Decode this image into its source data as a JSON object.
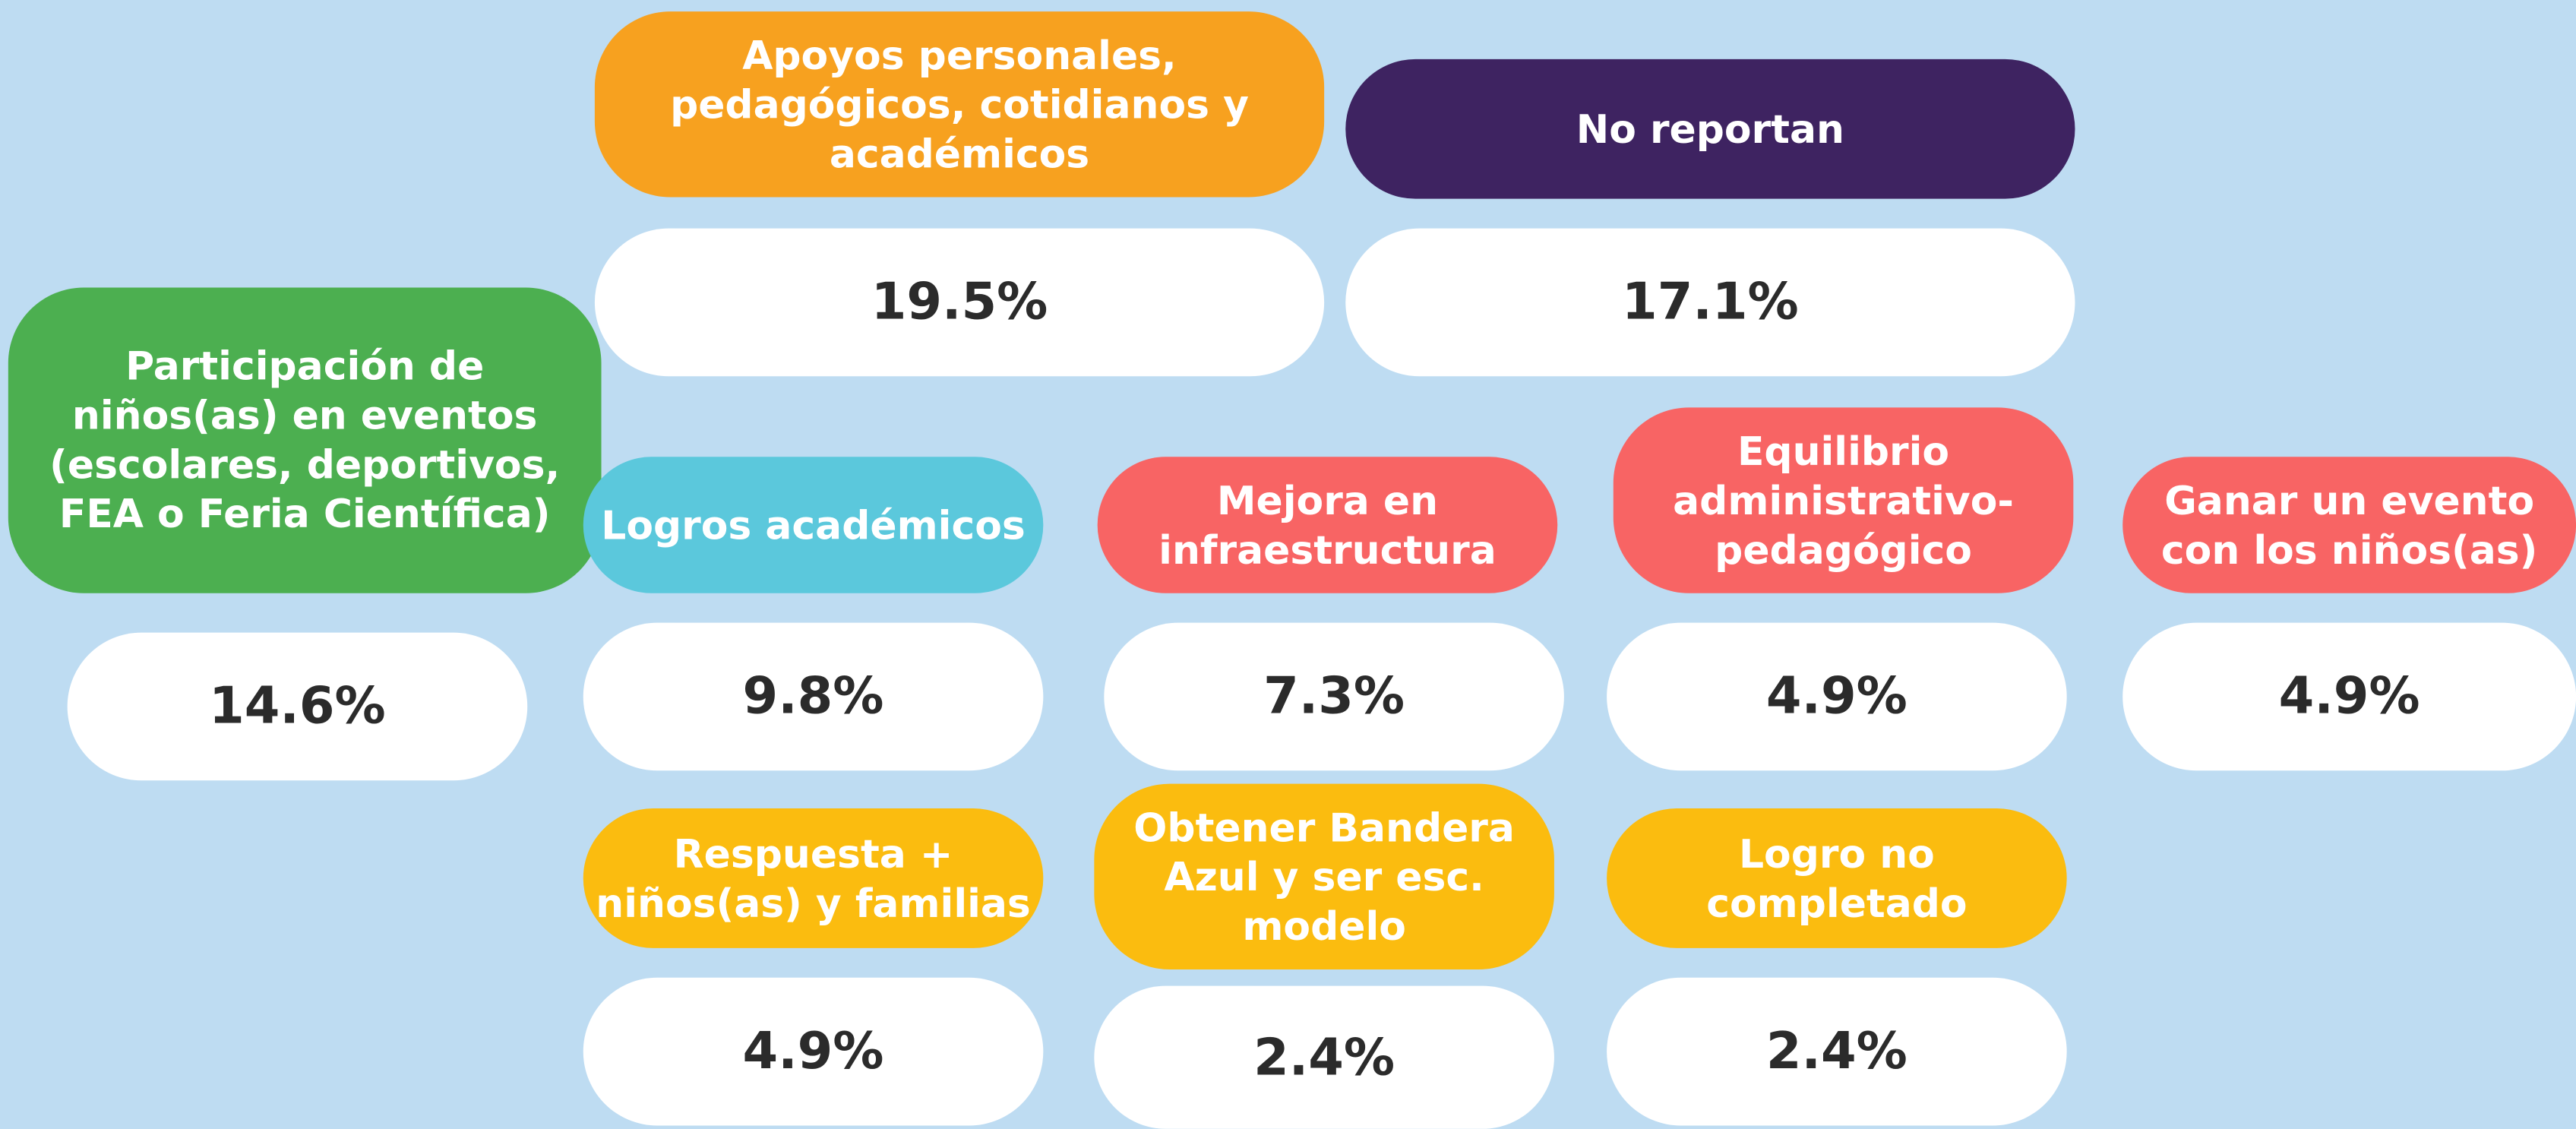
{
  "items": [
    {
      "label": "Apoyos personales, pedagógicos, cotidianos y académicos",
      "value": "19.5%",
      "color": "#f7a11f"
    },
    {
      "label": "No reportan",
      "value": "17.1%",
      "color": "#3e2361"
    },
    {
      "label": "Participación de niños(as) en eventos (escolares, deportivos, FEA o Feria Científica)",
      "value": "14.6%",
      "color": "#4caf50"
    },
    {
      "label": "Logros académicos",
      "value": "9.8%",
      "color": "#5bc8dc"
    },
    {
      "label": "Mejora en infraestructura",
      "value": "7.3%",
      "color": "#f86464"
    },
    {
      "label": "Equilibrio administrativo-pedagógico",
      "value": "4.9%",
      "color": "#f86464"
    },
    {
      "label": "Ganar un evento con los niños(as)",
      "value": "4.9%",
      "color": "#f86464"
    },
    {
      "label": "Respuesta + niños(as) y familias",
      "value": "4.9%",
      "color": "#fbbc0f"
    },
    {
      "label": "Obtener Bandera Azul y ser esc. modelo",
      "value": "2.4%",
      "color": "#fbbc0f"
    },
    {
      "label": "Logro no completado",
      "value": "2.4%",
      "color": "#fbbc0f"
    }
  ]
}
